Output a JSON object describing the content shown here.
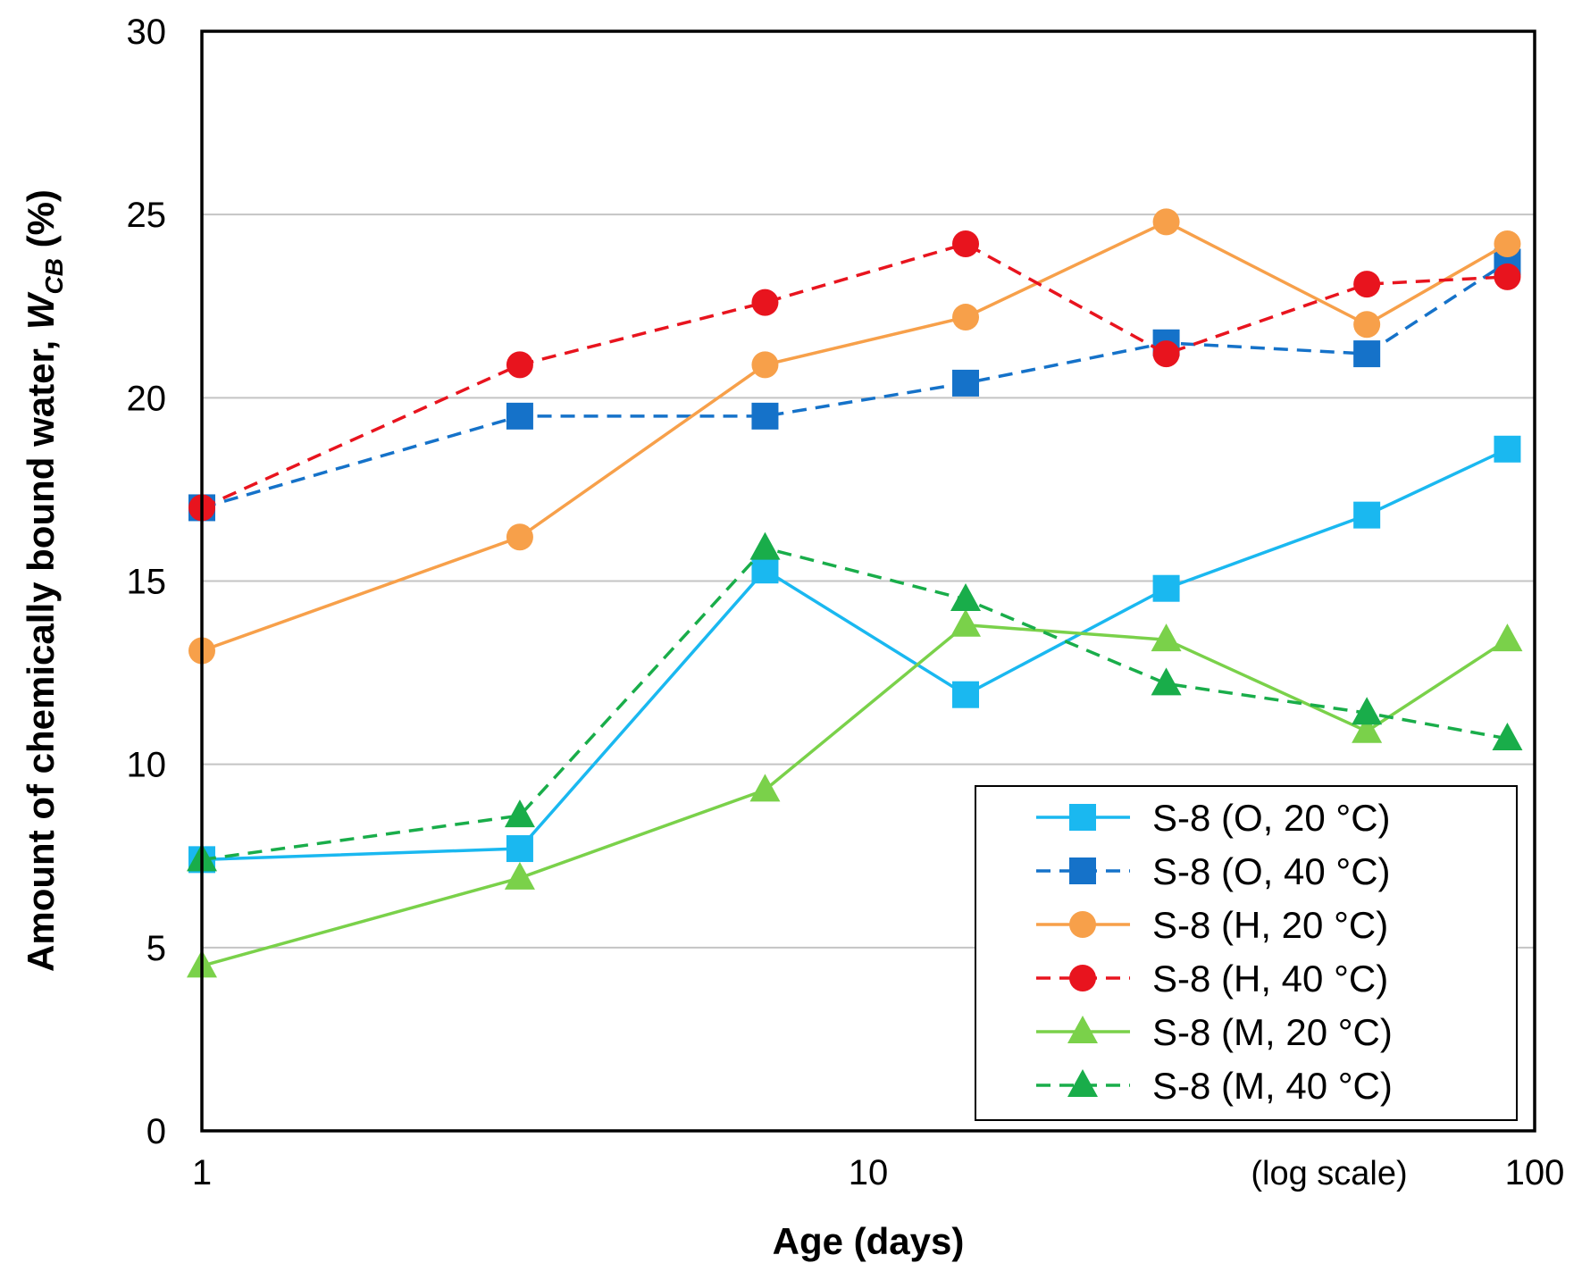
{
  "chart_data": {
    "type": "line",
    "xscale": "log",
    "xlim": [
      1,
      100
    ],
    "ylim": [
      0,
      30
    ],
    "xticks": [
      1,
      10,
      100
    ],
    "xtick_labels": [
      "1",
      "10",
      "100"
    ],
    "yticks": [
      0,
      5,
      10,
      15,
      20,
      25,
      30
    ],
    "ytick_labels": [
      "0",
      "5",
      "10",
      "15",
      "20",
      "25",
      "30"
    ],
    "xlabel": "Age (days)",
    "ylabel_prefix": "Amount of chemically bound water, ",
    "ylabel_var": "W",
    "ylabel_sub": "CB",
    "ylabel_suffix": " (%)",
    "x_note": "(log scale)",
    "grid": "horizontal",
    "legend_position": "bottom-right",
    "series": [
      {
        "name": "S-8 (O, 20 °C)",
        "color": "#1ab8f0",
        "dash": "solid",
        "marker": "square",
        "x": [
          1,
          3,
          7,
          14,
          28,
          56,
          91
        ],
        "y": [
          7.4,
          7.7,
          15.3,
          11.9,
          14.8,
          16.8,
          18.6
        ]
      },
      {
        "name": "S-8 (O, 40 °C)",
        "color": "#1572c9",
        "dash": "dashed",
        "marker": "square",
        "x": [
          1,
          3,
          7,
          14,
          28,
          56,
          91
        ],
        "y": [
          17.0,
          19.5,
          19.5,
          20.4,
          21.5,
          21.2,
          23.7
        ]
      },
      {
        "name": "S-8 (H, 20 °C)",
        "color": "#f7a04a",
        "dash": "solid",
        "marker": "circle",
        "x": [
          1,
          3,
          7,
          14,
          28,
          56,
          91
        ],
        "y": [
          13.1,
          16.2,
          20.9,
          22.2,
          24.8,
          22.0,
          24.2
        ]
      },
      {
        "name": "S-8 (H, 40 °C)",
        "color": "#e8141e",
        "dash": "dashed",
        "marker": "circle",
        "x": [
          1,
          3,
          7,
          14,
          28,
          56,
          91
        ],
        "y": [
          17.0,
          20.9,
          22.6,
          24.2,
          21.2,
          23.1,
          23.3
        ]
      },
      {
        "name": "S-8 (M, 20 °C)",
        "color": "#7ad14a",
        "dash": "solid",
        "marker": "triangle",
        "x": [
          1,
          3,
          7,
          14,
          28,
          56,
          91
        ],
        "y": [
          4.5,
          6.9,
          9.3,
          13.8,
          13.4,
          10.9,
          13.4
        ]
      },
      {
        "name": "S-8 (M, 40 °C)",
        "color": "#19ad4a",
        "dash": "dashed",
        "marker": "triangle",
        "x": [
          1,
          3,
          7,
          14,
          28,
          56,
          91
        ],
        "y": [
          7.4,
          8.6,
          15.9,
          14.5,
          12.2,
          11.4,
          10.7
        ]
      }
    ]
  }
}
